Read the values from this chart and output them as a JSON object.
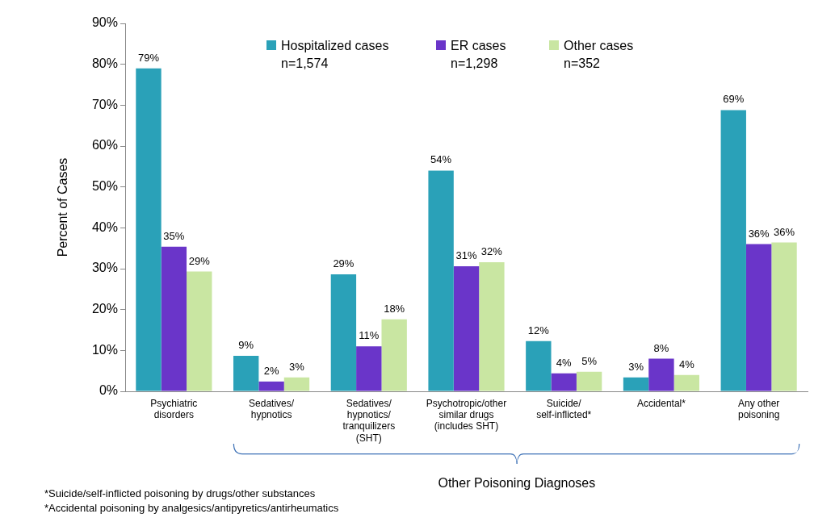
{
  "chart_data": {
    "type": "bar",
    "ylabel": "Percent of Cases",
    "categories": [
      "Psychiatric\ndisorders",
      "Sedatives/\nhypnotics",
      "Sedatives/\nhypnotics/\ntranquilizers\n(SHT)",
      "Psychotropic/other\nsimilar drugs\n(includes SHT)",
      "Suicide/\nself-inflicted*",
      "Accidental*",
      "Any other\npoisoning"
    ],
    "series": [
      {
        "name": "Hospitalized cases",
        "color": "#2aa1b8",
        "values": [
          79,
          8.7,
          28.6,
          54,
          12.3,
          3.4,
          68.8
        ],
        "value_labels": [
          "79%",
          "9%",
          "29%",
          "54%",
          "12%",
          "3%",
          "69%"
        ]
      },
      {
        "name": "ER cases",
        "color": "#6a35c9",
        "values": [
          35.4,
          2.4,
          11,
          30.6,
          4.4,
          8,
          36
        ],
        "value_labels": [
          "35%",
          "2%",
          "11%",
          "31%",
          "4%",
          "8%",
          "36%"
        ]
      },
      {
        "name": "Other cases",
        "color": "#c9e6a2",
        "values": [
          29.3,
          3.4,
          17.6,
          31.6,
          4.8,
          4,
          36.4
        ],
        "value_labels": [
          "29%",
          "3%",
          "18%",
          "32%",
          "5%",
          "4%",
          "36%"
        ]
      }
    ],
    "ylim": [
      0,
      90
    ],
    "yticks": [
      {
        "value": 0,
        "label": "0%"
      },
      {
        "value": 10,
        "label": "10%"
      },
      {
        "value": 20,
        "label": "20%"
      },
      {
        "value": 30,
        "label": "30%"
      },
      {
        "value": 40,
        "label": "40%"
      },
      {
        "value": 50,
        "label": "50%"
      },
      {
        "value": 60,
        "label": "60%"
      },
      {
        "value": 70,
        "label": "70%"
      },
      {
        "value": 80,
        "label": "80%"
      },
      {
        "value": 90,
        "label": "90%"
      }
    ],
    "grid": false,
    "legend": "top",
    "annotations": [
      "n=1,574",
      "n=1,298",
      "n=352",
      "Other Poisoning Diagnoses",
      "*Suicide/self-inflicted poisoning by drugs/other substances",
      "*Accidental poisoning by analgesics/antipyretics/antirheumatics"
    ]
  }
}
